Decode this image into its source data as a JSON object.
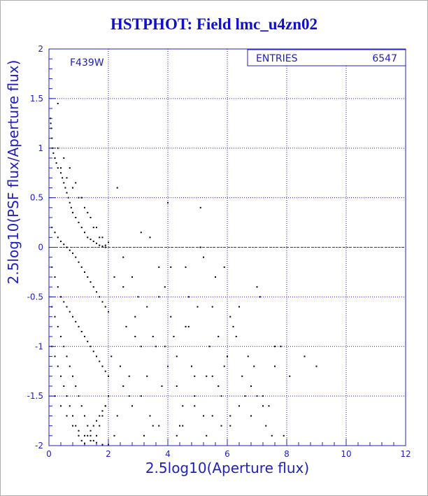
{
  "chart_data": {
    "type": "scatter",
    "title": "HSTPHOT: Field lmc_u4zn02",
    "xlabel": "2.5log10(Aperture flux)",
    "ylabel": "2.5log10(PSF flux/Aperture flux)",
    "xlim": [
      0,
      12
    ],
    "ylim": [
      -2,
      2
    ],
    "xticks": [
      "0",
      "2",
      "4",
      "6",
      "8",
      "10",
      "12"
    ],
    "yticks": [
      "2",
      "1.5",
      "1",
      "0.5",
      "0",
      "-0.5",
      "-1",
      "-1.5",
      "-2"
    ],
    "filter_label": "F439W",
    "stats": {
      "label": "ENTRIES",
      "value": "6547"
    },
    "grid": true,
    "reference_line_y": 0,
    "colors": {
      "axis": "#2020c0",
      "grid": "#2020c0",
      "points": "#000000",
      "reference": "#cc0000",
      "title": "#1010cc"
    },
    "series": [
      {
        "x": [
          0.05,
          0.06,
          0.08,
          0.1,
          0.12,
          0.15,
          0.2,
          0.25,
          0.3,
          0.3,
          0.4,
          0.45,
          0.5,
          0.55,
          0.6,
          0.65,
          0.7,
          0.75,
          0.8,
          0.9,
          1.0,
          1.1,
          1.2,
          1.3,
          1.4,
          1.5,
          1.6,
          1.7,
          1.8,
          1.9,
          0.1,
          0.2,
          0.3,
          0.4,
          0.5,
          0.6,
          0.7,
          0.8,
          0.9,
          1.0,
          1.1,
          1.2,
          1.3,
          1.4,
          1.5,
          1.6,
          1.7,
          1.8,
          1.9,
          2.0,
          0.1,
          0.2,
          0.3,
          0.4,
          0.5,
          0.6,
          0.7,
          0.8,
          0.9,
          1.0,
          1.1,
          1.2,
          1.3,
          1.4,
          1.5,
          1.6,
          1.7,
          1.8,
          1.9,
          2.0,
          0.1,
          0.2,
          0.3,
          0.4,
          0.5,
          0.6,
          0.7,
          0.8,
          0.9,
          1.0,
          1.1,
          1.2,
          1.3,
          1.4,
          1.5,
          1.6,
          1.7,
          1.8,
          1.9,
          2.0,
          0.1,
          0.2,
          0.3,
          0.4,
          0.5,
          0.6,
          0.7,
          0.8,
          0.9,
          1.0,
          1.1,
          1.2,
          1.3,
          1.4,
          1.5,
          1.6,
          1.7,
          1.8,
          1.9,
          0.2,
          0.4,
          0.6,
          0.8,
          1.0,
          1.2,
          1.4,
          1.6,
          1.8,
          2.0,
          0.2,
          0.4,
          0.6,
          0.8,
          1.0,
          1.2,
          1.4,
          1.6,
          1.8,
          2.0,
          0.3,
          0.5,
          0.7,
          0.9,
          1.1,
          1.3,
          1.5,
          1.7,
          1.9,
          2.2,
          2.4,
          2.6,
          2.8,
          3.0,
          3.2,
          3.4,
          3.6,
          3.8,
          4.0,
          4.2,
          4.4,
          4.6,
          4.8,
          5.0,
          5.2,
          5.4,
          5.6,
          5.8,
          6.0,
          6.2,
          6.5,
          6.8,
          7.0,
          7.2,
          7.5,
          7.8,
          8.1,
          8.6,
          9.0,
          2.3,
          2.5,
          2.7,
          2.9,
          3.1,
          3.3,
          3.5,
          3.7,
          3.9,
          4.1,
          4.3,
          4.5,
          4.7,
          4.9,
          5.1,
          5.3,
          5.5,
          5.7,
          5.9,
          6.1,
          6.3,
          6.6,
          6.9,
          7.1,
          7.4,
          2.1,
          2.3,
          2.5,
          2.7,
          2.9,
          3.1,
          3.3,
          3.5,
          3.7,
          3.9,
          4.1,
          4.3,
          4.5,
          4.7,
          4.9,
          5.1,
          5.3,
          5.5,
          5.7,
          5.9,
          6.1,
          6.4,
          6.8,
          7.2,
          7.6,
          2.2,
          2.5,
          2.8,
          3.1,
          3.4,
          3.7,
          4.0,
          4.3,
          4.6,
          4.9,
          5.2,
          5.5,
          5.8,
          6.1,
          6.4,
          6.7,
          7.0,
          7.3,
          7.6,
          7.9
        ],
        "y": [
          1.3,
          1.25,
          1.2,
          1.1,
          1.0,
          0.95,
          0.9,
          0.85,
          0.8,
          1.45,
          0.75,
          0.7,
          0.65,
          0.6,
          0.55,
          0.5,
          0.45,
          0.4,
          0.35,
          0.3,
          0.25,
          0.2,
          0.15,
          0.1,
          0.08,
          0.06,
          0.04,
          0.02,
          0.01,
          0.0,
          0.2,
          0.15,
          0.1,
          0.06,
          0.03,
          0.0,
          -0.03,
          -0.06,
          -0.1,
          -0.15,
          -0.2,
          -0.25,
          -0.3,
          -0.35,
          -0.4,
          -0.45,
          -0.5,
          -0.55,
          -0.6,
          -0.65,
          -0.2,
          -0.3,
          -0.4,
          -0.5,
          -0.55,
          -0.6,
          -0.65,
          -0.7,
          -0.75,
          -0.8,
          -0.85,
          -0.9,
          -0.95,
          -1.0,
          -1.05,
          -1.1,
          -1.15,
          -1.2,
          -1.25,
          -1.3,
          -0.6,
          -0.7,
          -0.8,
          -0.9,
          -1.0,
          -1.1,
          -1.2,
          -1.3,
          -1.4,
          -1.5,
          -1.6,
          -1.7,
          -1.8,
          -1.9,
          -1.95,
          -1.9,
          -1.8,
          -1.7,
          -1.6,
          -1.5,
          -1.0,
          -1.1,
          -1.2,
          -1.3,
          -1.4,
          -1.5,
          -1.6,
          -1.7,
          -1.8,
          -1.9,
          -1.95,
          -1.98,
          -1.9,
          -1.85,
          -1.8,
          -1.75,
          -1.7,
          -1.65,
          -1.6,
          0.9,
          0.8,
          0.7,
          0.6,
          0.5,
          0.4,
          0.3,
          0.2,
          0.1,
          0.05,
          -1.5,
          -1.6,
          -1.7,
          -1.8,
          -1.85,
          -1.9,
          -1.95,
          -1.97,
          -1.99,
          -1.99,
          1.0,
          0.9,
          0.8,
          0.65,
          0.5,
          0.35,
          0.2,
          0.1,
          0.02,
          -0.3,
          -1.2,
          -0.8,
          -1.6,
          -0.5,
          -1.9,
          0.1,
          -1.0,
          -1.4,
          0.45,
          -0.9,
          -1.8,
          -0.2,
          -1.2,
          -0.6,
          -1.7,
          -1.0,
          -0.3,
          -1.5,
          -1.1,
          -0.8,
          -1.3,
          -1.7,
          -0.4,
          -1.5,
          -1.9,
          -1.0,
          -1.3,
          -1.1,
          -1.2,
          0.6,
          -0.1,
          -1.5,
          -0.7,
          0.15,
          -1.3,
          -0.9,
          -1.8,
          -0.4,
          -0.2,
          -1.1,
          -1.6,
          -0.5,
          -1.3,
          0.4,
          -1.9,
          -0.6,
          -1.4,
          -0.2,
          -1.7,
          -0.9,
          -1.5,
          -1.2,
          -0.5,
          -1.6,
          -1.1,
          -1.7,
          -0.4,
          -1.3,
          -0.9,
          -1.5,
          -0.6,
          -1.8,
          -0.2,
          -1.0,
          -0.7,
          -1.4,
          -1.8,
          -0.8,
          -1.6,
          0.0,
          -1.3,
          -1.7,
          -0.9,
          -1.2,
          -1.8,
          -0.6,
          -1.4,
          -1.6,
          -1.0,
          -1.9,
          -1.4,
          -0.3,
          -1.0,
          -1.7,
          -0.5,
          -1.2,
          -1.9,
          -0.8,
          -1.5,
          -0.1,
          -1.3,
          -1.8,
          -0.7,
          -1.6,
          -1.1,
          -1.5,
          -1.8,
          -1.2,
          -1.9
        ]
      }
    ]
  }
}
